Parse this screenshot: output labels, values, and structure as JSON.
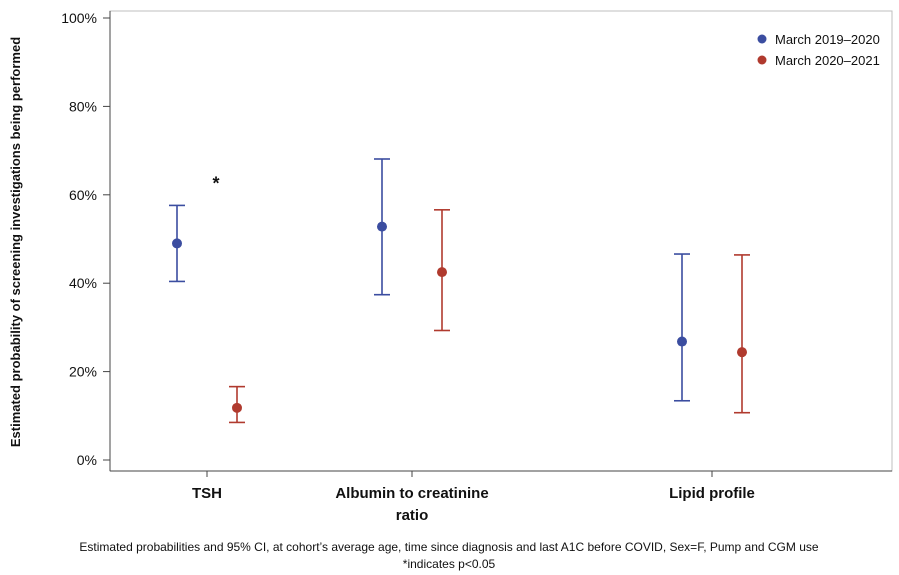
{
  "chart_data": {
    "type": "scatter",
    "ylabel": "Estimated probability of screening investigations being performed",
    "ylim": [
      0,
      100
    ],
    "yticks": [
      0,
      20,
      40,
      60,
      80,
      100
    ],
    "ytick_labels": [
      "0%",
      "20%",
      "40%",
      "60%",
      "80%",
      "100%"
    ],
    "categories": [
      "TSH",
      "Albumin to creatinine ratio",
      "Lipid profile"
    ],
    "category_lines": [
      [
        "TSH"
      ],
      [
        "Albumin to creatinine",
        "ratio"
      ],
      [
        "Lipid profile"
      ]
    ],
    "series": [
      {
        "name": "March 2019–2020",
        "color": "#3b4da0",
        "values": [
          49,
          52.8,
          26.8
        ],
        "lower": [
          40.4,
          37.4,
          13.4
        ],
        "upper": [
          57.6,
          68.1,
          46.6
        ]
      },
      {
        "name": "March 2020–2021",
        "color": "#b03a2e",
        "values": [
          11.8,
          42.5,
          24.4
        ],
        "lower": [
          8.5,
          29.3,
          10.7
        ],
        "upper": [
          16.6,
          56.6,
          46.4
        ]
      }
    ],
    "annotations": [
      {
        "text": "*",
        "category": "TSH",
        "y": 63.5
      }
    ],
    "legend_position": "top-right",
    "caption_lines": [
      "Estimated probabilities and 95% CI, at cohort’s average age, time since diagnosis and last A1C before COVID, Sex=F, Pump and CGM use",
      "*indicates p<0.05"
    ],
    "grid": false
  }
}
